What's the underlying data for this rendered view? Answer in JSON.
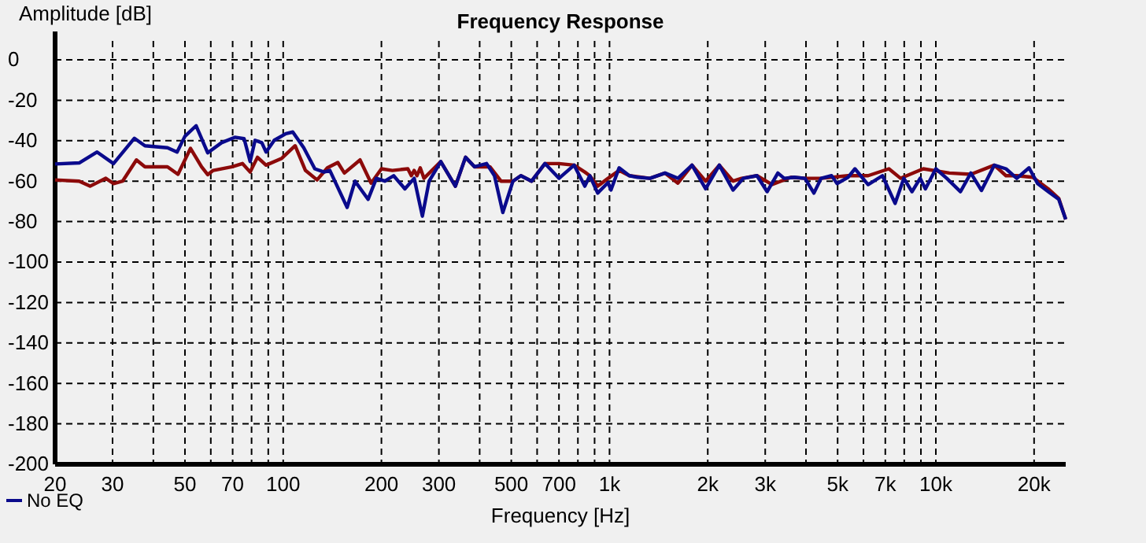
{
  "chart_data": {
    "type": "line",
    "title": "Frequency Response",
    "xlabel": "Frequency [Hz]",
    "ylabel": "Amplitude [dB]",
    "log": "x",
    "grid": true,
    "legend": "bottom left",
    "line_style": "solid",
    "marker": "none",
    "xlim": [
      20,
      25000
    ],
    "ylim": [
      -200,
      14
    ],
    "xticks": [
      20,
      30,
      {
        "value": 40,
        "label": null
      },
      50,
      {
        "value": 60,
        "label": null
      },
      70,
      {
        "value": 80,
        "label": null
      },
      {
        "value": 90,
        "label": null
      },
      100,
      200,
      300,
      {
        "value": 400,
        "label": null
      },
      500,
      {
        "value": 600,
        "label": null
      },
      700,
      {
        "value": 800,
        "label": null
      },
      {
        "value": 900,
        "label": null
      },
      {
        "value": 1000,
        "label": "1k"
      },
      {
        "value": 2000,
        "label": "2k"
      },
      {
        "value": 3000,
        "label": "3k"
      },
      {
        "value": 4000,
        "label": null
      },
      {
        "value": 5000,
        "label": "5k"
      },
      {
        "value": 6000,
        "label": null
      },
      {
        "value": 7000,
        "label": "7k"
      },
      {
        "value": 8000,
        "label": null
      },
      {
        "value": 9000,
        "label": null
      },
      {
        "value": 10000,
        "label": "10k"
      },
      {
        "value": 20000,
        "label": "20k"
      }
    ],
    "yticks": [
      0,
      -20,
      -40,
      -60,
      -80,
      -100,
      -120,
      -140,
      -160,
      -180,
      -200
    ],
    "series": [
      {
        "name": "No EQ",
        "color": "#0a0a8c",
        "x": [
          20,
          23.7,
          26.9,
          30.2,
          35,
          37.7,
          44.2,
          47.3,
          50,
          54.1,
          58.7,
          64.7,
          71.1,
          75.9,
          79.2,
          82,
          86,
          88.6,
          93.9,
          101.9,
          107,
          115.6,
          125,
          133.4,
          139,
          157,
          166,
          182,
          193,
          205,
          218,
          236,
          252,
          267,
          280,
          304,
          337,
          362,
          386,
          420,
          444,
          471,
          506,
          535,
          577,
          634,
          700,
          779,
          840,
          870,
          920,
          990,
          1010,
          1070,
          1150,
          1220,
          1330,
          1480,
          1620,
          1790,
          1970,
          2170,
          2390,
          2570,
          2830,
          3040,
          3280,
          3430,
          3680,
          3970,
          4230,
          4450,
          4790,
          4980,
          5380,
          5650,
          6200,
          6860,
          7500,
          7980,
          8450,
          8950,
          9290,
          10000,
          10800,
          11900,
          12800,
          13800,
          15100,
          16400,
          17700,
          19300,
          20500,
          22100,
          23800,
          25000
        ],
        "values": [
          -51.5,
          -51,
          -45.6,
          -51.3,
          -38.8,
          -42.5,
          -43.5,
          -45.6,
          -37.8,
          -32.6,
          -46,
          -41,
          -38.3,
          -39,
          -50.3,
          -39.8,
          -41,
          -45.6,
          -39.8,
          -36.5,
          -35.7,
          -43.5,
          -53.9,
          -55.5,
          -54.7,
          -73,
          -60,
          -69,
          -58.6,
          -60,
          -57.3,
          -63.8,
          -58.6,
          -77.3,
          -60,
          -50.3,
          -62.5,
          -48.2,
          -52.9,
          -51.3,
          -57.3,
          -75.5,
          -60,
          -57.3,
          -60,
          -51.3,
          -58.6,
          -52.1,
          -62.5,
          -57.3,
          -65.9,
          -60.7,
          -64.4,
          -53.4,
          -57.3,
          -58.1,
          -58.6,
          -56,
          -58.6,
          -52.1,
          -63.8,
          -52.1,
          -64.4,
          -58.6,
          -57.3,
          -65.2,
          -56,
          -58.6,
          -58.1,
          -58.6,
          -65.9,
          -58.6,
          -57.3,
          -61.2,
          -58.1,
          -53.9,
          -61.7,
          -57.3,
          -71,
          -58.6,
          -65.2,
          -58.6,
          -63.8,
          -53.9,
          -58.6,
          -65.2,
          -56,
          -64.6,
          -52.1,
          -53.9,
          -58.6,
          -53.4,
          -61.2,
          -65.2,
          -69,
          -78.9
        ]
      },
      {
        "color": "#8c0a0a",
        "x": [
          20,
          23.7,
          25.6,
          28.6,
          30.2,
          32.2,
          35.5,
          37.7,
          44.2,
          47.6,
          52,
          56.2,
          58.7,
          61,
          69.8,
          75,
          79.2,
          83.4,
          88.6,
          99,
          108.8,
          117,
          127,
          136.6,
          147,
          154,
          172,
          186,
          200,
          216,
          241,
          247,
          252,
          257,
          263,
          270,
          304,
          337,
          362,
          386,
          430,
          465,
          506,
          535,
          577,
          634,
          700,
          779,
          840,
          870,
          920,
          990,
          1070,
          1150,
          1330,
          1480,
          1620,
          1790,
          1970,
          2170,
          2390,
          2540,
          2830,
          3150,
          3600,
          3970,
          4450,
          5380,
          6200,
          7180,
          7800,
          9150,
          11000,
          12800,
          15100,
          16400,
          17700,
          19800,
          22100,
          23800,
          25000
        ],
        "values": [
          -59.4,
          -60,
          -62.5,
          -58.6,
          -61.2,
          -60,
          -49.5,
          -52.9,
          -52.9,
          -56.6,
          -43.8,
          -52.9,
          -56.8,
          -54.7,
          -52.9,
          -51.3,
          -55.5,
          -48.2,
          -52.1,
          -48.7,
          -42.5,
          -54.7,
          -59.4,
          -53.4,
          -50.8,
          -56,
          -49.5,
          -61,
          -53.9,
          -54.7,
          -53.9,
          -57.3,
          -54.7,
          -57.3,
          -53.4,
          -58.6,
          -50.3,
          -62.5,
          -48.2,
          -52.9,
          -52.9,
          -60,
          -60,
          -57.3,
          -60,
          -51.3,
          -51.3,
          -52.1,
          -55.5,
          -57.3,
          -62.5,
          -58.6,
          -54.7,
          -57.3,
          -58.6,
          -56,
          -61,
          -52.1,
          -60,
          -52.1,
          -60,
          -58.6,
          -57.3,
          -61.7,
          -58.1,
          -58.6,
          -58.6,
          -57.3,
          -57.3,
          -53.9,
          -58.6,
          -53.9,
          -56,
          -56.6,
          -52.1,
          -57.3,
          -57.3,
          -58.1,
          -63.8,
          -68.5,
          -78.9
        ]
      }
    ]
  }
}
